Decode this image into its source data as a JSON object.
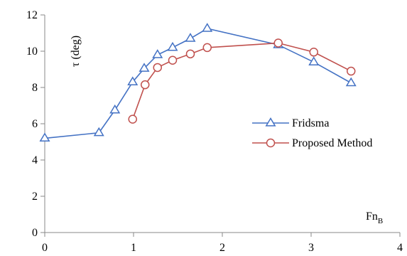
{
  "chart_data": {
    "type": "line",
    "title": "",
    "xlabel": "Fn",
    "xlabel_subscript": "B",
    "ylabel": "τ (deg)",
    "xlim": [
      0,
      4
    ],
    "ylim": [
      0,
      12
    ],
    "x_ticks": [
      0,
      1,
      2,
      3,
      4
    ],
    "y_ticks": [
      0,
      2,
      4,
      6,
      8,
      10,
      12
    ],
    "grid": false,
    "legend_position": "right",
    "series": [
      {
        "name": "Fridsma",
        "color": "#4472C4",
        "marker": "triangle",
        "points": [
          {
            "x": 0.0,
            "y": 5.2
          },
          {
            "x": 0.61,
            "y": 5.5
          },
          {
            "x": 0.79,
            "y": 6.75
          },
          {
            "x": 0.99,
            "y": 8.3
          },
          {
            "x": 1.12,
            "y": 9.05
          },
          {
            "x": 1.27,
            "y": 9.8
          },
          {
            "x": 1.44,
            "y": 10.2
          },
          {
            "x": 1.64,
            "y": 10.7
          },
          {
            "x": 1.83,
            "y": 11.25
          },
          {
            "x": 2.63,
            "y": 10.35
          },
          {
            "x": 3.03,
            "y": 9.4
          },
          {
            "x": 3.45,
            "y": 8.25
          }
        ]
      },
      {
        "name": "Proposed Method",
        "color": "#C0504D",
        "marker": "circle",
        "points": [
          {
            "x": 0.99,
            "y": 6.25
          },
          {
            "x": 1.13,
            "y": 8.15
          },
          {
            "x": 1.27,
            "y": 9.1
          },
          {
            "x": 1.44,
            "y": 9.5
          },
          {
            "x": 1.64,
            "y": 9.85
          },
          {
            "x": 1.83,
            "y": 10.2
          },
          {
            "x": 2.63,
            "y": 10.45
          },
          {
            "x": 3.03,
            "y": 9.95
          },
          {
            "x": 3.45,
            "y": 8.9
          }
        ]
      }
    ]
  }
}
